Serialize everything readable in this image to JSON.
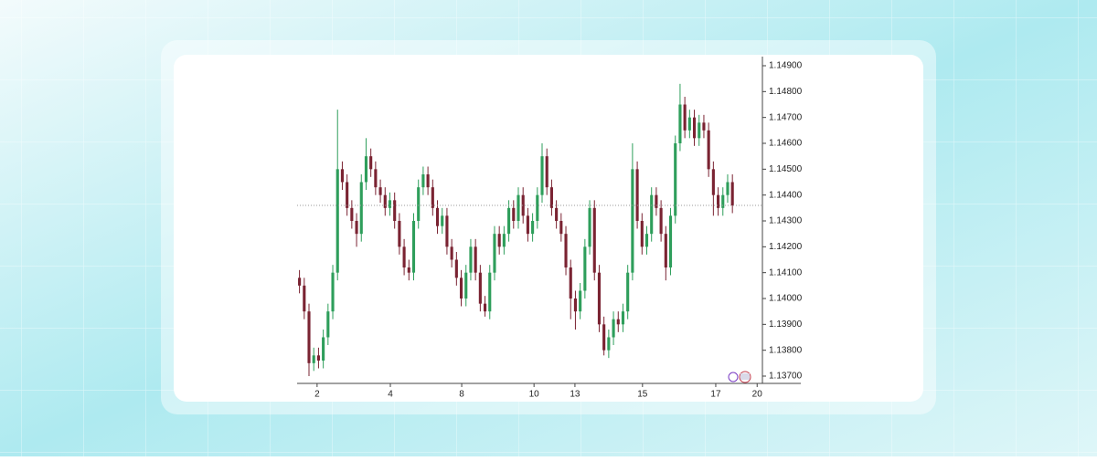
{
  "chart_data": {
    "type": "candlestick",
    "up_color": "#2e9e5b",
    "down_color": "#7a2332",
    "x": [
      0,
      1,
      2,
      3,
      4,
      5,
      6,
      7,
      8,
      9,
      10,
      11,
      12,
      13,
      14,
      15,
      16,
      17,
      18,
      19,
      20,
      21,
      22,
      23,
      24,
      25,
      26,
      27,
      28,
      29,
      30,
      31,
      32,
      33,
      34,
      35,
      36,
      37,
      38,
      39,
      40,
      41,
      42,
      43,
      44,
      45,
      46,
      47,
      48,
      49,
      50,
      51,
      52,
      53,
      54,
      55,
      56,
      57,
      58,
      59,
      60,
      61,
      62,
      63,
      64,
      65,
      66,
      67,
      68,
      69,
      70,
      71,
      72,
      73,
      74,
      75,
      76,
      77,
      78,
      79,
      80,
      81,
      82,
      83,
      84,
      85,
      86,
      87,
      88,
      89,
      90,
      91
    ],
    "series": [
      {
        "open": [
          1.1408,
          1.1405,
          1.1395,
          1.1375,
          1.1378,
          1.1376,
          1.1385,
          1.1395,
          1.141,
          1.145,
          1.1445,
          1.1435,
          1.143,
          1.1425,
          1.1445,
          1.1455,
          1.145,
          1.1443,
          1.144,
          1.1435,
          1.1438,
          1.143,
          1.142,
          1.1412,
          1.141,
          1.143,
          1.1443,
          1.1448,
          1.1443,
          1.1435,
          1.1428,
          1.1432,
          1.142,
          1.1415,
          1.1408,
          1.14,
          1.141,
          1.142,
          1.141,
          1.1398,
          1.1395,
          1.141,
          1.1425,
          1.142,
          1.1425,
          1.1435,
          1.143,
          1.144,
          1.1432,
          1.1425,
          1.143,
          1.144,
          1.1455,
          1.1443,
          1.1435,
          1.143,
          1.1425,
          1.1412,
          1.14,
          1.1395,
          1.1403,
          1.142,
          1.1435,
          1.141,
          1.139,
          1.138,
          1.1385,
          1.1392,
          1.139,
          1.1395,
          1.141,
          1.145,
          1.143,
          1.142,
          1.1425,
          1.144,
          1.1435,
          1.1425,
          1.1412,
          1.1432,
          1.146,
          1.1475,
          1.1465,
          1.147,
          1.1462,
          1.1468,
          1.1465,
          1.145,
          1.144,
          1.1435,
          1.144,
          1.1445
        ],
        "high": [
          1.1411,
          1.1408,
          1.1398,
          1.1381,
          1.1381,
          1.1388,
          1.1398,
          1.1413,
          1.1473,
          1.1453,
          1.1448,
          1.1438,
          1.1433,
          1.1448,
          1.1462,
          1.1458,
          1.1453,
          1.1446,
          1.1443,
          1.1441,
          1.1441,
          1.1433,
          1.1423,
          1.1415,
          1.1433,
          1.1446,
          1.1451,
          1.1451,
          1.1446,
          1.1438,
          1.1435,
          1.1435,
          1.1423,
          1.1418,
          1.1411,
          1.1413,
          1.1423,
          1.1423,
          1.1413,
          1.1401,
          1.1413,
          1.1428,
          1.1428,
          1.1428,
          1.1438,
          1.1438,
          1.1443,
          1.1443,
          1.1435,
          1.1433,
          1.1443,
          1.146,
          1.1458,
          1.1446,
          1.1438,
          1.1433,
          1.1428,
          1.1415,
          1.1403,
          1.1406,
          1.1423,
          1.1438,
          1.1438,
          1.1413,
          1.1393,
          1.1388,
          1.1395,
          1.1395,
          1.1398,
          1.1413,
          1.146,
          1.1453,
          1.1433,
          1.1428,
          1.1443,
          1.1443,
          1.1438,
          1.1428,
          1.1435,
          1.1463,
          1.1483,
          1.1478,
          1.1473,
          1.1473,
          1.1471,
          1.1471,
          1.1468,
          1.1453,
          1.1443,
          1.1443,
          1.1448,
          1.1448
        ],
        "low": [
          1.1402,
          1.1392,
          1.137,
          1.1372,
          1.1373,
          1.1373,
          1.1382,
          1.1392,
          1.1407,
          1.1442,
          1.1432,
          1.1427,
          1.142,
          1.1422,
          1.1442,
          1.1447,
          1.144,
          1.1437,
          1.1432,
          1.1432,
          1.1427,
          1.1417,
          1.1409,
          1.1407,
          1.1407,
          1.1427,
          1.144,
          1.144,
          1.1432,
          1.1425,
          1.1425,
          1.1417,
          1.1412,
          1.1405,
          1.1397,
          1.1397,
          1.1407,
          1.1407,
          1.1395,
          1.1393,
          1.1392,
          1.1407,
          1.1417,
          1.1417,
          1.1422,
          1.1427,
          1.1427,
          1.1429,
          1.1422,
          1.1422,
          1.1427,
          1.1437,
          1.144,
          1.1432,
          1.1427,
          1.1422,
          1.1409,
          1.1392,
          1.1388,
          1.1392,
          1.14,
          1.1417,
          1.1407,
          1.1387,
          1.1378,
          1.1377,
          1.1382,
          1.1387,
          1.1387,
          1.1392,
          1.1407,
          1.1427,
          1.1417,
          1.1417,
          1.1422,
          1.1432,
          1.1422,
          1.1407,
          1.1409,
          1.1429,
          1.1457,
          1.1462,
          1.1462,
          1.1459,
          1.1459,
          1.1462,
          1.1447,
          1.1432,
          1.1432,
          1.1432,
          1.1437,
          1.1433
        ],
        "close": [
          1.1405,
          1.1395,
          1.1375,
          1.1378,
          1.1376,
          1.1385,
          1.1395,
          1.141,
          1.145,
          1.1445,
          1.1435,
          1.143,
          1.1425,
          1.1445,
          1.1455,
          1.145,
          1.1443,
          1.144,
          1.1435,
          1.1438,
          1.143,
          1.142,
          1.1412,
          1.141,
          1.143,
          1.1443,
          1.1448,
          1.1443,
          1.1435,
          1.1428,
          1.1432,
          1.142,
          1.1415,
          1.1408,
          1.14,
          1.141,
          1.142,
          1.141,
          1.1398,
          1.1395,
          1.141,
          1.1425,
          1.142,
          1.1425,
          1.1435,
          1.143,
          1.144,
          1.1432,
          1.1425,
          1.143,
          1.144,
          1.1455,
          1.1443,
          1.1435,
          1.143,
          1.1425,
          1.1412,
          1.14,
          1.1395,
          1.1403,
          1.142,
          1.1435,
          1.141,
          1.139,
          1.138,
          1.1385,
          1.1392,
          1.139,
          1.1395,
          1.141,
          1.145,
          1.143,
          1.142,
          1.1425,
          1.144,
          1.1435,
          1.1425,
          1.1412,
          1.1432,
          1.146,
          1.1475,
          1.1465,
          1.147,
          1.1462,
          1.1468,
          1.1465,
          1.145,
          1.144,
          1.1435,
          1.144,
          1.1445,
          1.1436
        ]
      }
    ],
    "xlim": [
      -0.5,
      97.5
    ],
    "xticks": [
      {
        "value": 3.7,
        "label": "2"
      },
      {
        "value": 19.1,
        "label": "4"
      },
      {
        "value": 34.1,
        "label": "8"
      },
      {
        "value": 49.3,
        "label": "10"
      },
      {
        "value": 57.9,
        "label": "13"
      },
      {
        "value": 72.1,
        "label": "15"
      },
      {
        "value": 87.5,
        "label": "17"
      },
      {
        "value": 96.2,
        "label": "20"
      }
    ],
    "ylim": [
      1.137,
      1.149
    ],
    "yticks": [
      {
        "value": 1.137,
        "label": "1.13700"
      },
      {
        "value": 1.138,
        "label": "1.13800"
      },
      {
        "value": 1.139,
        "label": "1.13900"
      },
      {
        "value": 1.14,
        "label": "1.14000"
      },
      {
        "value": 1.141,
        "label": "1.14100"
      },
      {
        "value": 1.142,
        "label": "1.14200"
      },
      {
        "value": 1.143,
        "label": "1.14300"
      },
      {
        "value": 1.144,
        "label": "1.14400"
      },
      {
        "value": 1.145,
        "label": "1.14500"
      },
      {
        "value": 1.146,
        "label": "1.14600"
      },
      {
        "value": 1.147,
        "label": "1.14700"
      },
      {
        "value": 1.148,
        "label": "1.14800"
      },
      {
        "value": 1.149,
        "label": "1.14900"
      }
    ],
    "last_price_line": true
  }
}
